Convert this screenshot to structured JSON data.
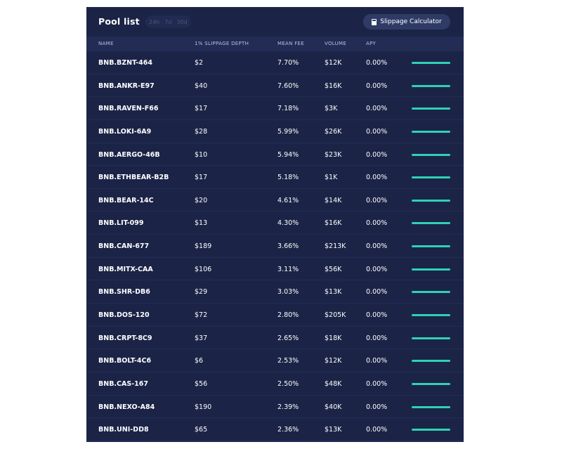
{
  "panel": {
    "title": "Pool list",
    "period_tabs": [
      "24h",
      "7d",
      "30d"
    ],
    "calculator_button": "Slippage Calculator"
  },
  "colors": {
    "panel_bg": "#1b2447",
    "header_row_bg": "#222c55",
    "button_bg": "#2f3b66",
    "sparkline": "#2fd1b4"
  },
  "columns": {
    "name": "NAME",
    "depth": "1% SLIPPAGE DEPTH",
    "fee": "MEAN FEE",
    "volume": "VOLUME",
    "apy": "APY"
  },
  "rows": [
    {
      "name": "BNB.BZNT-464",
      "depth": "$2",
      "fee": "7.70%",
      "volume": "$12K",
      "apy": "0.00%"
    },
    {
      "name": "BNB.ANKR-E97",
      "depth": "$40",
      "fee": "7.60%",
      "volume": "$16K",
      "apy": "0.00%"
    },
    {
      "name": "BNB.RAVEN-F66",
      "depth": "$17",
      "fee": "7.18%",
      "volume": "$3K",
      "apy": "0.00%"
    },
    {
      "name": "BNB.LOKI-6A9",
      "depth": "$28",
      "fee": "5.99%",
      "volume": "$26K",
      "apy": "0.00%"
    },
    {
      "name": "BNB.AERGO-46B",
      "depth": "$10",
      "fee": "5.94%",
      "volume": "$23K",
      "apy": "0.00%"
    },
    {
      "name": "BNB.ETHBEAR-B2B",
      "depth": "$17",
      "fee": "5.18%",
      "volume": "$1K",
      "apy": "0.00%"
    },
    {
      "name": "BNB.BEAR-14C",
      "depth": "$20",
      "fee": "4.61%",
      "volume": "$14K",
      "apy": "0.00%"
    },
    {
      "name": "BNB.LIT-099",
      "depth": "$13",
      "fee": "4.30%",
      "volume": "$16K",
      "apy": "0.00%"
    },
    {
      "name": "BNB.CAN-677",
      "depth": "$189",
      "fee": "3.66%",
      "volume": "$213K",
      "apy": "0.00%"
    },
    {
      "name": "BNB.MITX-CAA",
      "depth": "$106",
      "fee": "3.11%",
      "volume": "$56K",
      "apy": "0.00%"
    },
    {
      "name": "BNB.SHR-DB6",
      "depth": "$29",
      "fee": "3.03%",
      "volume": "$13K",
      "apy": "0.00%"
    },
    {
      "name": "BNB.DOS-120",
      "depth": "$72",
      "fee": "2.80%",
      "volume": "$205K",
      "apy": "0.00%"
    },
    {
      "name": "BNB.CRPT-8C9",
      "depth": "$37",
      "fee": "2.65%",
      "volume": "$18K",
      "apy": "0.00%"
    },
    {
      "name": "BNB.BOLT-4C6",
      "depth": "$6",
      "fee": "2.53%",
      "volume": "$12K",
      "apy": "0.00%"
    },
    {
      "name": "BNB.CAS-167",
      "depth": "$56",
      "fee": "2.50%",
      "volume": "$48K",
      "apy": "0.00%"
    },
    {
      "name": "BNB.NEXO-A84",
      "depth": "$190",
      "fee": "2.39%",
      "volume": "$40K",
      "apy": "0.00%"
    },
    {
      "name": "BNB.UNI-DD8",
      "depth": "$65",
      "fee": "2.36%",
      "volume": "$13K",
      "apy": "0.00%"
    }
  ]
}
